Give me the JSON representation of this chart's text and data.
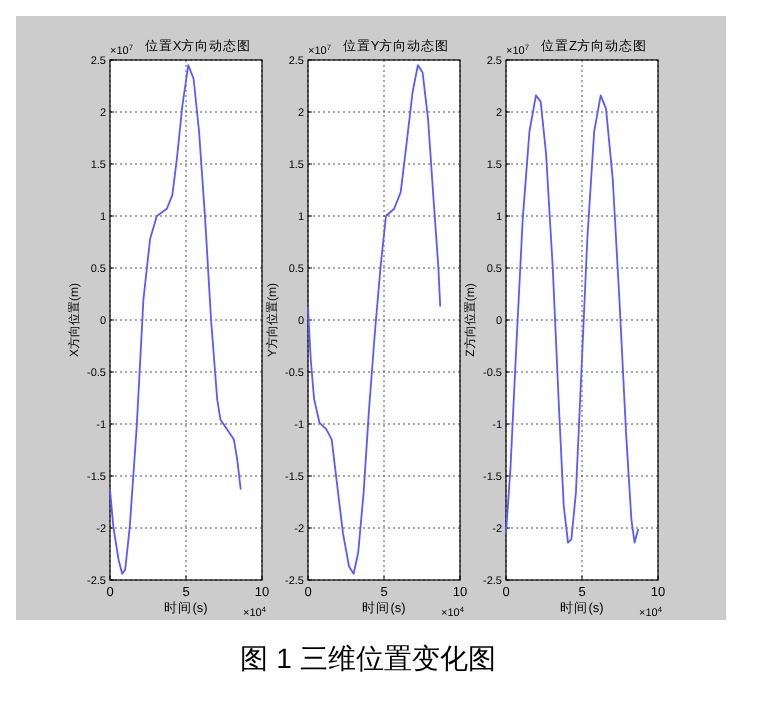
{
  "chart_data": [
    {
      "type": "line",
      "title": "位置X方向动态图",
      "xlabel": "时间(s)",
      "ylabel": "X方向位置(m)",
      "color": "#5a5aff",
      "line_style": "solid",
      "grid": true,
      "xlim": [
        0,
        10
      ],
      "ylim": [
        -2.5,
        2.5
      ],
      "xticks": [
        0,
        5,
        10
      ],
      "yticks": [
        -2.5,
        -2,
        -1.5,
        -1,
        -0.5,
        0,
        0.5,
        1,
        1.5,
        2,
        2.5
      ],
      "annotations": [
        "×10$^{7}$",
        "×10$^{4}$",
        "图 1 三维位置变化图"
      ],
      "x": [
        0,
        0.22,
        0.57,
        0.8,
        1.0,
        1.3,
        1.76,
        2.2,
        2.64,
        3.08,
        3.74,
        4.1,
        4.4,
        4.76,
        5.15,
        5.5,
        5.86,
        6.26,
        6.65,
        7.05,
        7.27,
        7.7,
        8.15,
        8.37,
        8.6
      ],
      "values": [
        -1.63,
        -1.99,
        -2.31,
        -2.44,
        -2.4,
        -1.99,
        -1.02,
        0.2,
        0.78,
        1.0,
        1.07,
        1.2,
        1.55,
        2.06,
        2.45,
        2.32,
        1.81,
        0.97,
        0.0,
        -0.76,
        -0.96,
        -1.05,
        -1.15,
        -1.34,
        -1.63
      ]
    },
    {
      "type": "line",
      "title": "位置Y方向动态图",
      "xlabel": "时间(s)",
      "ylabel": "Y方向位置(m)",
      "color": "#5a5aff",
      "line_style": "solid",
      "grid": true,
      "xlim": [
        0,
        10
      ],
      "ylim": [
        -2.5,
        2.5
      ],
      "xticks": [
        0,
        5,
        10
      ],
      "yticks": [
        -2.5,
        -2,
        -1.5,
        -1,
        -0.5,
        0,
        0.5,
        1,
        1.5,
        2,
        2.5
      ],
      "annotations": [
        "×10$^{7}$",
        "×10$^{4}$"
      ],
      "x": [
        0,
        0.18,
        0.4,
        0.76,
        1.2,
        1.56,
        1.88,
        2.3,
        2.7,
        3.0,
        3.3,
        3.66,
        4.0,
        4.4,
        4.78,
        5.13,
        5.67,
        6.1,
        6.47,
        6.88,
        7.23,
        7.54,
        7.9,
        8.26,
        8.57,
        8.7
      ],
      "values": [
        0.13,
        -0.38,
        -0.76,
        -0.99,
        -1.05,
        -1.15,
        -1.54,
        -2.05,
        -2.37,
        -2.44,
        -2.24,
        -1.66,
        -0.89,
        -0.12,
        0.52,
        1.0,
        1.07,
        1.23,
        1.68,
        2.19,
        2.45,
        2.38,
        1.93,
        1.16,
        0.52,
        0.13
      ]
    },
    {
      "type": "line",
      "title": "位置Z方向动态图",
      "xlabel": "时间(s)",
      "ylabel": "Z方向位置(m)",
      "color": "#5a5aff",
      "line_style": "solid",
      "grid": true,
      "xlim": [
        0,
        10
      ],
      "ylim": [
        -2.5,
        2.5
      ],
      "xticks": [
        0,
        5,
        10
      ],
      "yticks": [
        -2.5,
        -2,
        -1.5,
        -1,
        -0.5,
        0,
        0.5,
        1,
        1.5,
        2,
        2.5
      ],
      "annotations": [
        "×10$^{7}$",
        "×10$^{4}$"
      ],
      "x": [
        0,
        0.3,
        0.66,
        1.1,
        1.54,
        1.97,
        2.28,
        2.63,
        3.07,
        3.5,
        3.8,
        4.08,
        4.3,
        4.6,
        4.96,
        5.35,
        5.8,
        6.23,
        6.58,
        7.02,
        7.46,
        7.9,
        8.25,
        8.46,
        8.7
      ],
      "values": [
        -2.05,
        -1.41,
        -0.31,
        0.97,
        1.81,
        2.16,
        2.1,
        1.61,
        0.52,
        -0.89,
        -1.79,
        -2.14,
        -2.11,
        -1.66,
        -0.5,
        0.78,
        1.81,
        2.16,
        2.03,
        1.36,
        0.2,
        -1.09,
        -1.92,
        -2.14,
        -2.01
      ]
    }
  ]
}
